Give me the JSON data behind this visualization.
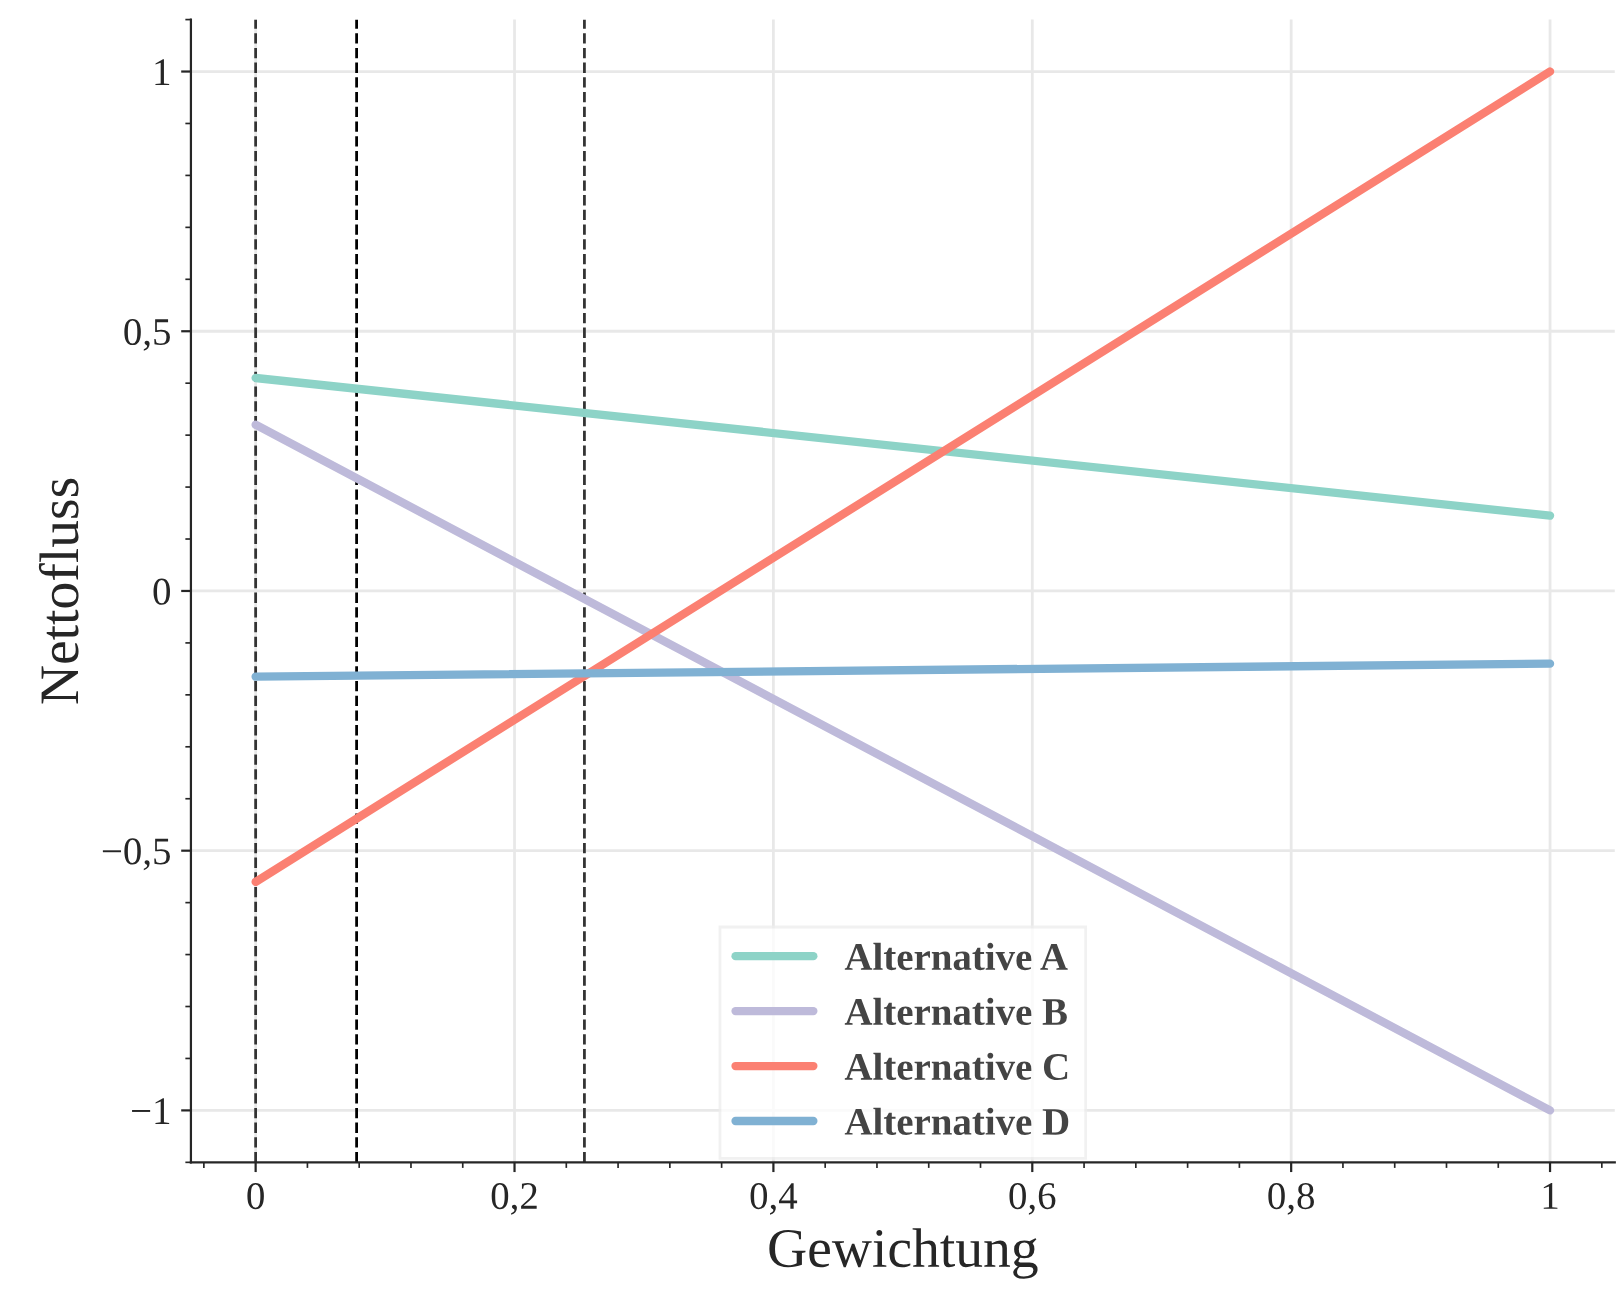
{
  "chart_data": {
    "type": "line",
    "xlabel": "Gewichtung",
    "ylabel": "Nettofluss",
    "x": [
      0,
      1
    ],
    "series": [
      {
        "name": "Alternative A",
        "color": "#8dd3c7",
        "values": [
          0.41,
          0.145
        ]
      },
      {
        "name": "Alternative B",
        "color": "#bebada",
        "values": [
          0.32,
          -1.0
        ]
      },
      {
        "name": "Alternative C",
        "color": "#fb8072",
        "values": [
          -0.56,
          1.0
        ]
      },
      {
        "name": "Alternative D",
        "color": "#80b1d3",
        "values": [
          -0.165,
          -0.14
        ]
      }
    ],
    "xlim": [
      -0.05,
      1.05
    ],
    "ylim": [
      -1.1,
      1.1
    ],
    "xticks": [
      0,
      {
        "value": 0.2,
        "label": "0,2"
      },
      {
        "value": 0.4,
        "label": "0,4"
      },
      {
        "value": 0.6,
        "label": "0,6"
      },
      {
        "value": 0.8,
        "label": "0,8"
      },
      1
    ],
    "yticks": [
      {
        "value": -1,
        "label": "−1"
      },
      {
        "value": -0.5,
        "label": "−0,5"
      },
      0,
      {
        "value": 0.5,
        "label": "0,5"
      },
      1
    ],
    "ref_lines": [
      {
        "axis": "x",
        "value": 0,
        "color": "#333333",
        "line_style": "dashed"
      },
      {
        "axis": "x",
        "value": 0.078,
        "color": "#000000",
        "line_style": "dashed"
      },
      {
        "axis": "x",
        "value": 0.254,
        "color": "#333333",
        "line_style": "dashed"
      }
    ],
    "grid": true,
    "legend": "bottom",
    "marker": "none",
    "line_style": "solid"
  }
}
